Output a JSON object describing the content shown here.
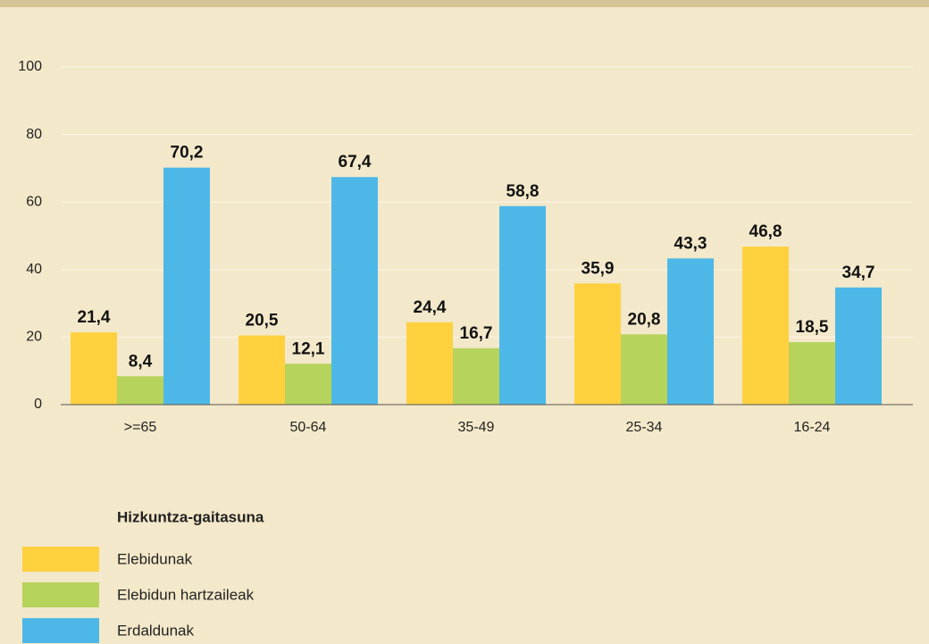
{
  "chart_data": {
    "type": "bar",
    "categories": [
      ">=65",
      "50-64",
      "35-49",
      "25-34",
      "16-24"
    ],
    "legend_title": "Hizkuntza-gaitasuna",
    "series": [
      {
        "name": "Elebidunak",
        "color": "#ffd13f",
        "values": [
          21.4,
          20.5,
          24.4,
          35.9,
          46.8
        ],
        "value_labels": [
          "21,4",
          "20,5",
          "24,4",
          "35,9",
          "46,8"
        ]
      },
      {
        "name": "Elebidun hartzaileak",
        "color": "#b6d35c",
        "values": [
          8.4,
          12.1,
          16.7,
          20.8,
          18.5
        ],
        "value_labels": [
          "8,4",
          "12,1",
          "16,7",
          "20,8",
          "18,5"
        ]
      },
      {
        "name": "Erdaldunak",
        "color": "#4db8e8",
        "values": [
          70.2,
          67.4,
          58.8,
          43.3,
          34.7
        ],
        "value_labels": [
          "70,2",
          "67,4",
          "58,8",
          "43,3",
          "34,7"
        ]
      }
    ],
    "ylim": [
      0,
      100
    ],
    "yticks": [
      0,
      20,
      40,
      60,
      80,
      100
    ],
    "grid": true
  }
}
